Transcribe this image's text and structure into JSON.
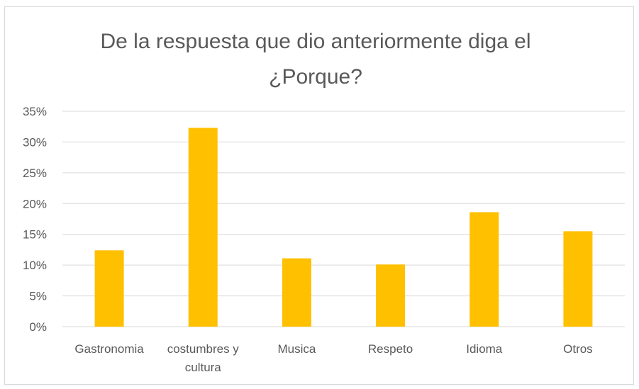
{
  "chart_data": {
    "type": "bar",
    "title_lines": [
      "De la respuesta que dio anteriormente diga el",
      "¿Porque?"
    ],
    "categories": [
      [
        "Gastronomia"
      ],
      [
        "costumbres y",
        "cultura"
      ],
      [
        "Musica"
      ],
      [
        "Respeto"
      ],
      [
        "Idioma"
      ],
      [
        "Otros"
      ]
    ],
    "values": [
      0.124,
      0.323,
      0.111,
      0.101,
      0.186,
      0.155
    ],
    "ylim": [
      0,
      0.35
    ],
    "yticks": [
      0,
      0.05,
      0.1,
      0.15,
      0.2,
      0.25,
      0.3,
      0.35
    ],
    "ytick_labels": [
      "0%",
      "5%",
      "10%",
      "15%",
      "20%",
      "25%",
      "30%",
      "35%"
    ],
    "grid": true,
    "legend": "none",
    "bar_color": "#ffc000",
    "grid_color": "#d9d9d9",
    "text_color": "#595959"
  }
}
